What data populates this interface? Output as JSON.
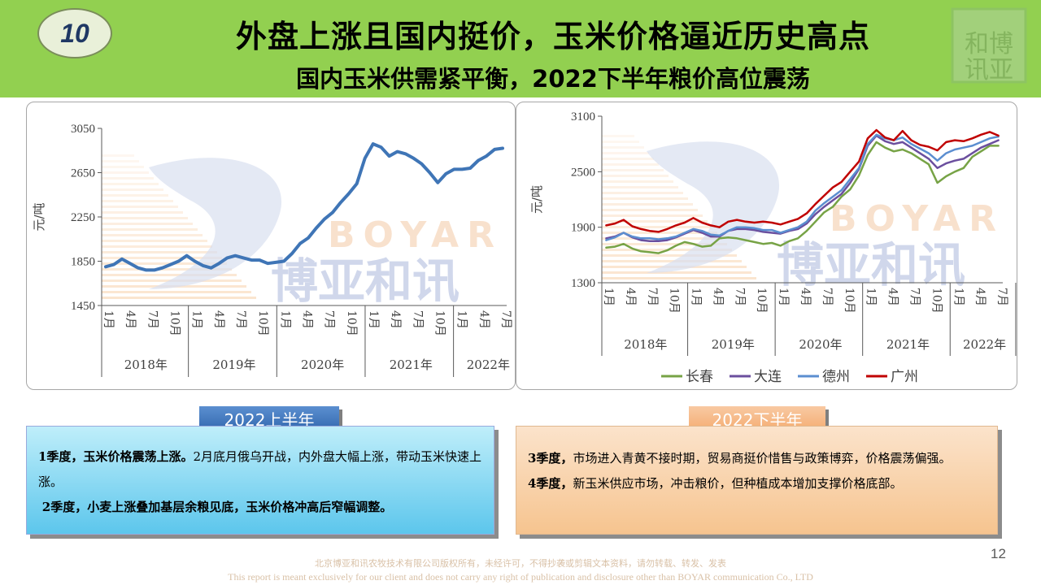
{
  "header": {
    "badge": "10",
    "title": "外盘上涨且国内挺价，玉米价格逼近历史高点",
    "subtitle": "国内玉米供需紧平衡，2022下半年粮价高位震荡",
    "seal_text": "和讯博亚"
  },
  "watermark": {
    "brand_en": "BOYAR",
    "brand_cn": "博亚和讯"
  },
  "colors": {
    "header_bg": "#92d050",
    "line_single": "#3f75b6",
    "changchun": "#77a346",
    "dalian": "#6b4f9e",
    "dezhou": "#5b8ed0",
    "guangzhou": "#c00000"
  },
  "chart_data": [
    {
      "type": "line",
      "title": "",
      "ylabel": "元/吨",
      "ylim": [
        1450,
        3050
      ],
      "yticks": [
        "3050",
        "2650",
        "2250",
        "1850",
        "1450"
      ],
      "month_labels": [
        "1月",
        "4月",
        "7月",
        "10月",
        "1月",
        "4月",
        "7月",
        "10月",
        "1月",
        "4月",
        "7月",
        "10月",
        "1月",
        "4月",
        "7月",
        "10月",
        "1月",
        "4月",
        "7月"
      ],
      "year_labels": [
        "2018年",
        "2019年",
        "2020年",
        "2021年",
        "2022年"
      ],
      "series": [
        {
          "values": [
            1800,
            1820,
            1870,
            1830,
            1790,
            1770,
            1770,
            1790,
            1820,
            1850,
            1900,
            1850,
            1810,
            1790,
            1830,
            1880,
            1900,
            1880,
            1860,
            1860,
            1830,
            1840,
            1850,
            1920,
            2010,
            2060,
            2150,
            2230,
            2290,
            2380,
            2460,
            2550,
            2780,
            2910,
            2880,
            2800,
            2840,
            2820,
            2780,
            2730,
            2650,
            2560,
            2640,
            2680,
            2680,
            2690,
            2760,
            2800,
            2860,
            2870
          ]
        }
      ]
    },
    {
      "type": "line",
      "title": "",
      "ylabel": "元/吨",
      "ylim": [
        1300,
        3100
      ],
      "yticks": [
        "3100",
        "2500",
        "1900",
        "1300"
      ],
      "month_labels": [
        "1月",
        "4月",
        "7月",
        "10月",
        "1月",
        "4月",
        "7月",
        "10月",
        "1月",
        "4月",
        "7月",
        "10月",
        "1月",
        "4月",
        "7月",
        "10月",
        "1月",
        "4月",
        "7月"
      ],
      "year_labels": [
        "2018年",
        "2019年",
        "2020年",
        "2021年",
        "2022年"
      ],
      "series": [
        {
          "name": "长春",
          "values": [
            1680,
            1690,
            1720,
            1670,
            1640,
            1630,
            1620,
            1650,
            1700,
            1740,
            1720,
            1690,
            1700,
            1780,
            1790,
            1780,
            1760,
            1740,
            1720,
            1730,
            1700,
            1750,
            1780,
            1860,
            1960,
            2060,
            2120,
            2230,
            2310,
            2460,
            2680,
            2820,
            2760,
            2720,
            2740,
            2700,
            2640,
            2580,
            2380,
            2450,
            2500,
            2540,
            2660,
            2720,
            2780,
            2780
          ]
        },
        {
          "name": "大连",
          "values": [
            1780,
            1800,
            1840,
            1790,
            1760,
            1750,
            1750,
            1760,
            1790,
            1830,
            1870,
            1840,
            1800,
            1800,
            1860,
            1880,
            1880,
            1870,
            1850,
            1840,
            1830,
            1860,
            1880,
            1940,
            2040,
            2120,
            2190,
            2260,
            2380,
            2530,
            2780,
            2890,
            2830,
            2800,
            2820,
            2760,
            2700,
            2640,
            2540,
            2590,
            2620,
            2640,
            2700,
            2760,
            2800,
            2840
          ]
        },
        {
          "name": "德州",
          "values": [
            1760,
            1790,
            1840,
            1800,
            1780,
            1780,
            1770,
            1780,
            1800,
            1840,
            1880,
            1860,
            1820,
            1810,
            1860,
            1900,
            1900,
            1890,
            1870,
            1870,
            1840,
            1870,
            1900,
            1960,
            2080,
            2160,
            2230,
            2300,
            2420,
            2540,
            2800,
            2900,
            2860,
            2840,
            2870,
            2800,
            2750,
            2700,
            2620,
            2700,
            2740,
            2760,
            2780,
            2820,
            2860,
            2880
          ]
        },
        {
          "name": "广州",
          "values": [
            1920,
            1940,
            1980,
            1910,
            1880,
            1860,
            1850,
            1880,
            1920,
            1950,
            2000,
            1950,
            1920,
            1900,
            1960,
            1980,
            1960,
            1950,
            1960,
            1950,
            1930,
            1960,
            1990,
            2050,
            2150,
            2240,
            2330,
            2390,
            2500,
            2610,
            2860,
            2950,
            2870,
            2840,
            2940,
            2840,
            2790,
            2770,
            2730,
            2820,
            2840,
            2830,
            2860,
            2900,
            2930,
            2890
          ]
        }
      ]
    }
  ],
  "sections": {
    "h1_label": "2022上半年",
    "h2_label": "2022下半年",
    "q1_head": "1季度，玉米价格震荡上涨。",
    "q1_body": "2月底月俄乌开战，内外盘大幅上涨，带动玉米快速上涨。",
    "q2_head": "2季度，小麦上涨叠加基层余粮见底，玉米价格冲高后窄幅调整。",
    "q3_head": "3季度，",
    "q3_body": "市场进入青黄不接时期，贸易商挺价惜售与政策博弈，价格震荡偏强。",
    "q4_head": "4季度，",
    "q4_body": "新玉米供应市场，冲击粮价，但种植成本增加支撑价格底部。"
  },
  "page_number": "12",
  "footer": {
    "cn": "北京博亚和讯农牧技术有限公司版权所有，未经许可，不得抄袭或剪辑文本资料，请勿转载、转发、发表",
    "en": "This report is meant exclusively for our client and does not carry any right of publication and disclosure other than BOYAR communication Co., LTD"
  }
}
